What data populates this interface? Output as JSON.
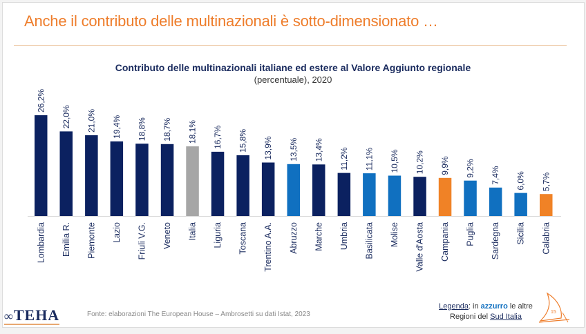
{
  "header": {
    "title": "Anche il contributo delle multinazionali è sotto-dimensionato …"
  },
  "chart_data": {
    "type": "bar",
    "title": "Contributo delle multinazionali italiane ed estere al Valore Aggiunto regionale",
    "subtitle": "(percentuale), 2020",
    "xlabel": "",
    "ylabel": "",
    "ylim": [
      0,
      28
    ],
    "grid": false,
    "categories": [
      "Lombardia",
      "Emilia R.",
      "Piemonte",
      "Lazio",
      "Friuli V.G.",
      "Veneto",
      "Italia",
      "Liguria",
      "Toscana",
      "Trentino A.A.",
      "Abruzzo",
      "Marche",
      "Umbria",
      "Basilicata",
      "Molise",
      "Valle d'Aosta",
      "Campania",
      "Puglia",
      "Sardegna",
      "Sicilia",
      "Calabria"
    ],
    "values": [
      26.2,
      22.0,
      21.0,
      19.4,
      18.8,
      18.7,
      18.1,
      16.7,
      15.8,
      13.9,
      13.5,
      13.4,
      11.2,
      11.1,
      10.5,
      10.2,
      9.9,
      9.2,
      7.4,
      6.0,
      5.7
    ],
    "labels": [
      "26,2%",
      "22,0%",
      "21,0%",
      "19,4%",
      "18,8%",
      "18,7%",
      "18,1%",
      "16,7%",
      "15,8%",
      "13,9%",
      "13,5%",
      "13,4%",
      "11,2%",
      "11,1%",
      "10,5%",
      "10,2%",
      "9,9%",
      "9,2%",
      "7,4%",
      "6,0%",
      "5,7%"
    ],
    "groups": [
      "other",
      "other",
      "other",
      "other",
      "other",
      "other",
      "italia",
      "other",
      "other",
      "other",
      "south",
      "other",
      "other",
      "south",
      "south",
      "other",
      "highlight",
      "south",
      "south",
      "south",
      "highlight"
    ],
    "colors": {
      "other": "#0b2160",
      "italia": "#a6a6a6",
      "south": "#1070c0",
      "highlight": "#f08226"
    }
  },
  "footer": {
    "source": "Fonte: elaborazioni The European House – Ambrosetti su dati Istat, 2023",
    "logo": "TEHA",
    "legend_prefix": "Legenda",
    "legend_mid": ": in ",
    "legend_accent": "azzurro",
    "legend_suffix": " le altre",
    "legend_line2": "Regioni del ",
    "legend_line2_u": "Sud Italia",
    "page_number": "15"
  }
}
